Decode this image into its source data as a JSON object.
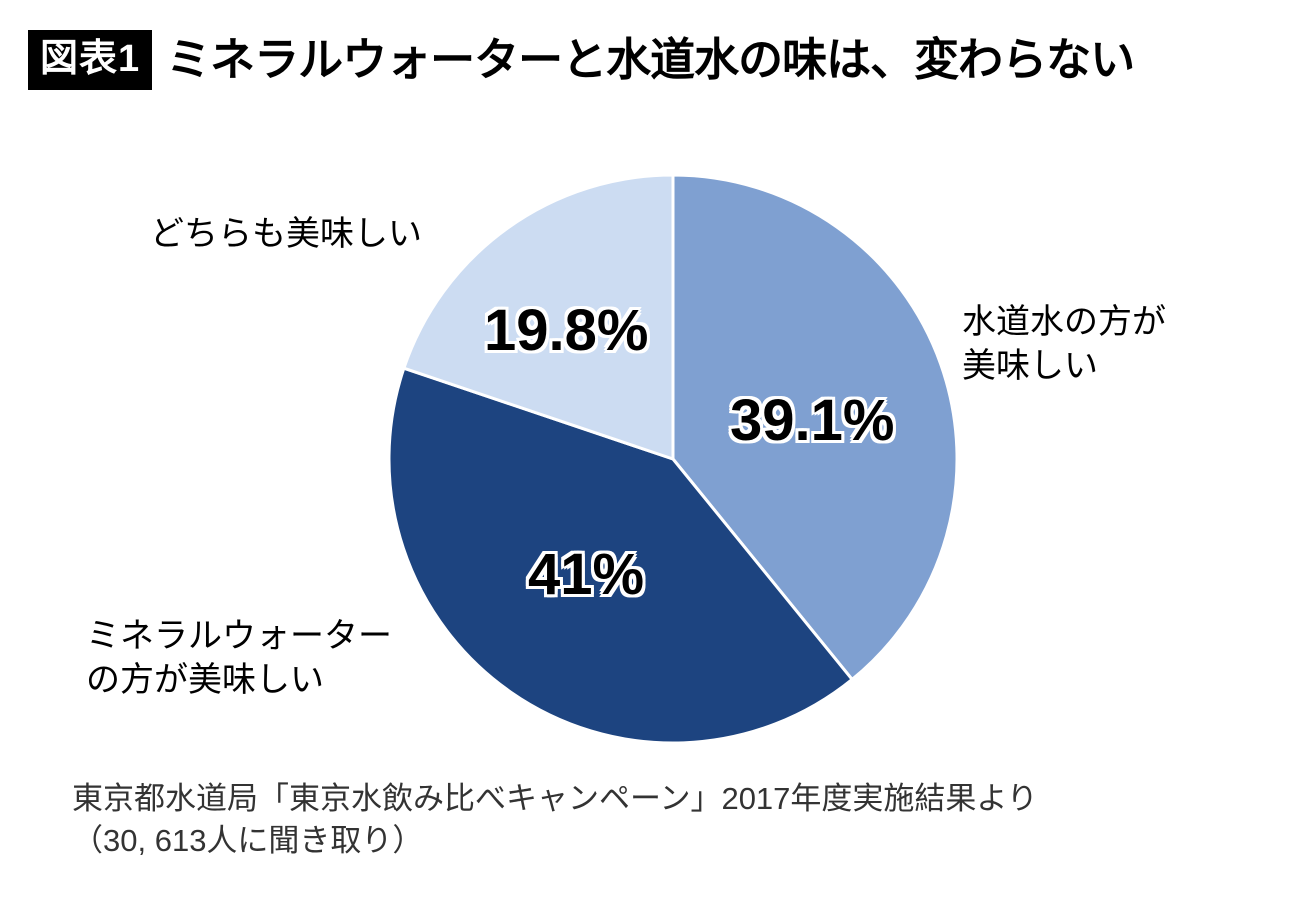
{
  "header": {
    "badge": "図表1",
    "title": "ミネラルウォーターと水道水の味は、変わらない"
  },
  "chart_data": {
    "type": "pie",
    "title": "ミネラルウォーターと水道水の味は、変わらない",
    "start_angle_deg": -90,
    "direction": "clockwise",
    "stroke_color": "#ffffff",
    "legend_position": "outside-labels",
    "slices": [
      {
        "label": "水道水の方が美味しい",
        "value": 39.1,
        "pct_label": "39.1%",
        "color": "#7fa0d1"
      },
      {
        "label": "ミネラルウォーターの方が美味しい",
        "value": 41,
        "pct_label": "41%",
        "color": "#1d4480"
      },
      {
        "label": "どちらも美味しい",
        "value": 19.8,
        "pct_label": "19.8%",
        "color": "#ccdcf2"
      }
    ]
  },
  "labels": {
    "both": "どちらも美味しい",
    "tap_line1": "水道水の方が",
    "tap_line2": "美味しい",
    "mineral_line1": "ミネラルウォーター",
    "mineral_line2": "の方が美味しい"
  },
  "source": {
    "line1": "東京都水道局「東京水飲み比べキャンペーン」2017年度実施結果より",
    "line2": "（30, 613人に聞き取り）"
  }
}
